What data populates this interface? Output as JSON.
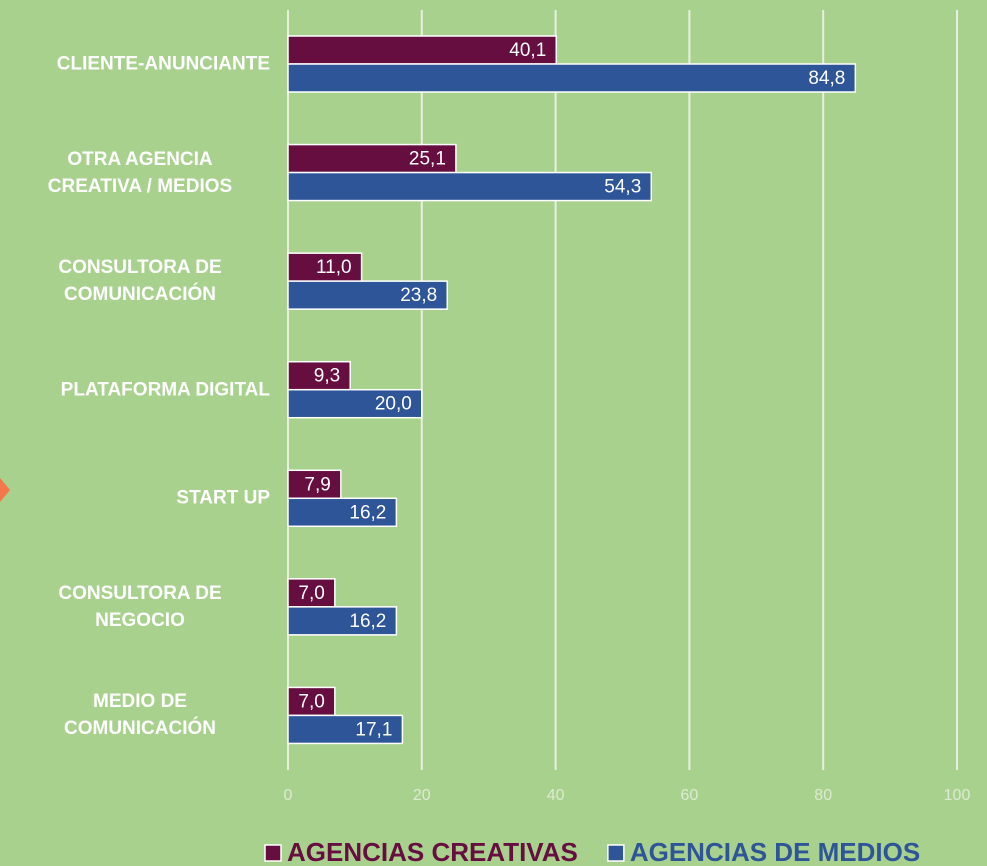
{
  "chart_data": {
    "type": "bar",
    "orientation": "horizontal",
    "categories": [
      "CLIENTE-ANUNCIANTE",
      "OTRA AGENCIA\nCREATIVA / MEDIOS",
      "CONSULTORA DE\nCOMUNICACIÓN",
      "PLATAFORMA DIGITAL",
      "START UP",
      "CONSULTORA DE\nNEGOCIO",
      "MEDIO DE\nCOMUNICACIÓN"
    ],
    "series": [
      {
        "name": "AGENCIAS CREATIVAS",
        "color": "#660e40",
        "values": [
          40.1,
          25.1,
          11.0,
          9.3,
          7.9,
          7.0,
          7.0
        ],
        "value_labels": [
          "40,1",
          "25,1",
          "11,0",
          "9,3",
          "7,9",
          "7,0",
          "7,0"
        ]
      },
      {
        "name": "AGENCIAS DE MEDIOS",
        "color": "#2e5597",
        "values": [
          84.8,
          54.3,
          23.8,
          20.0,
          16.2,
          16.2,
          17.1
        ],
        "value_labels": [
          "84,8",
          "54,3",
          "23,8",
          "20,0",
          "16,2",
          "16,2",
          "17,1"
        ]
      }
    ],
    "xlim": [
      0,
      100
    ],
    "xticks": [
      0,
      20,
      40,
      60,
      80,
      100
    ],
    "grid": true,
    "legend": "bottom"
  }
}
